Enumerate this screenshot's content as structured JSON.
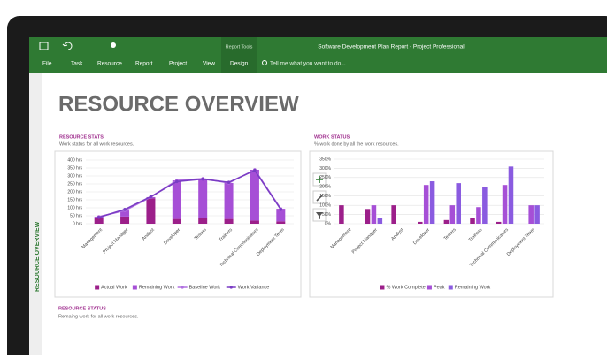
{
  "app": {
    "context_tab": "Report Tools",
    "title": "Software Development Plan Report - Project Professional",
    "tabs": [
      "File",
      "Task",
      "Resource",
      "Report",
      "Project",
      "View",
      "Design"
    ],
    "search": "Tell me what you want to do..."
  },
  "sidebar": "RESOURCE OVERVIEW",
  "report": {
    "title": "RESOURCE OVERVIEW",
    "status_heading": "RESOURCE STATUS",
    "status_subtitle": "Remaing work for all work resources."
  },
  "chart_data": [
    {
      "type": "bar",
      "stacked": true,
      "title": "RESOURCE STATS",
      "subtitle": "Work status for all work resources.",
      "categories": [
        "Management",
        "Project Manager",
        "Analyst",
        "Developer",
        "Testers",
        "Trainers",
        "Technical Communicators",
        "Deployment Team"
      ],
      "series": [
        {
          "name": "Actual Work",
          "color": "#9c1f8a",
          "values": [
            35,
            45,
            160,
            30,
            35,
            30,
            20,
            15
          ]
        },
        {
          "name": "Remaining Work",
          "color": "#a64fd6",
          "values": [
            9,
            38,
            7,
            242,
            248,
            226,
            319,
            79
          ]
        },
        {
          "name": "Baseline Work",
          "type": "line",
          "color": "#b070e0",
          "values": [
            44,
            83,
            167,
            272,
            283,
            256,
            339,
            94
          ]
        },
        {
          "name": "Work Variance",
          "type": "line",
          "color": "#7a3cc4",
          "values": [
            40,
            90,
            170,
            265,
            280,
            260,
            335,
            90
          ]
        }
      ],
      "ylim": [
        0,
        400
      ],
      "yticks": [
        {
          "value": 0,
          "label": "0 hrs"
        },
        {
          "value": 50,
          "label": "50 hrs"
        },
        {
          "value": 100,
          "label": "100 hrs"
        },
        {
          "value": 150,
          "label": "150 hrs"
        },
        {
          "value": 200,
          "label": "200 hrs"
        },
        {
          "value": 250,
          "label": "250 hrs"
        },
        {
          "value": 300,
          "label": "300 hrs"
        },
        {
          "value": 350,
          "label": "350 hrs"
        },
        {
          "value": 400,
          "label": "400 hrs"
        }
      ],
      "grid": true
    },
    {
      "type": "bar",
      "stacked": false,
      "title": "WORK STATUS",
      "subtitle": "% work done by all the work resources.",
      "categories": [
        "Management",
        "Project Manager",
        "Analyst",
        "Developer",
        "Testers",
        "Trainers",
        "Technical Communicators",
        "Deployment Team"
      ],
      "series": [
        {
          "name": "% Work Complete",
          "color": "#9c1f8a",
          "values": [
            100,
            80,
            100,
            10,
            20,
            30,
            10,
            0
          ]
        },
        {
          "name": "Peak",
          "color": "#a64fd6",
          "values": [
            0,
            100,
            0,
            210,
            100,
            90,
            210,
            100
          ]
        },
        {
          "name": "Remaining Work",
          "color": "#8a5be0",
          "values": [
            0,
            30,
            0,
            230,
            220,
            200,
            310,
            100
          ]
        }
      ],
      "ylim": [
        0,
        350
      ],
      "yticks": [
        {
          "value": 0,
          "label": "0%"
        },
        {
          "value": 50,
          "label": "50%"
        },
        {
          "value": 100,
          "label": "100%"
        },
        {
          "value": 150,
          "label": "150%"
        },
        {
          "value": 200,
          "label": "200%"
        },
        {
          "value": 250,
          "label": "250%"
        },
        {
          "value": 300,
          "label": "300%"
        },
        {
          "value": 350,
          "label": "350%"
        }
      ],
      "grid": true
    }
  ]
}
